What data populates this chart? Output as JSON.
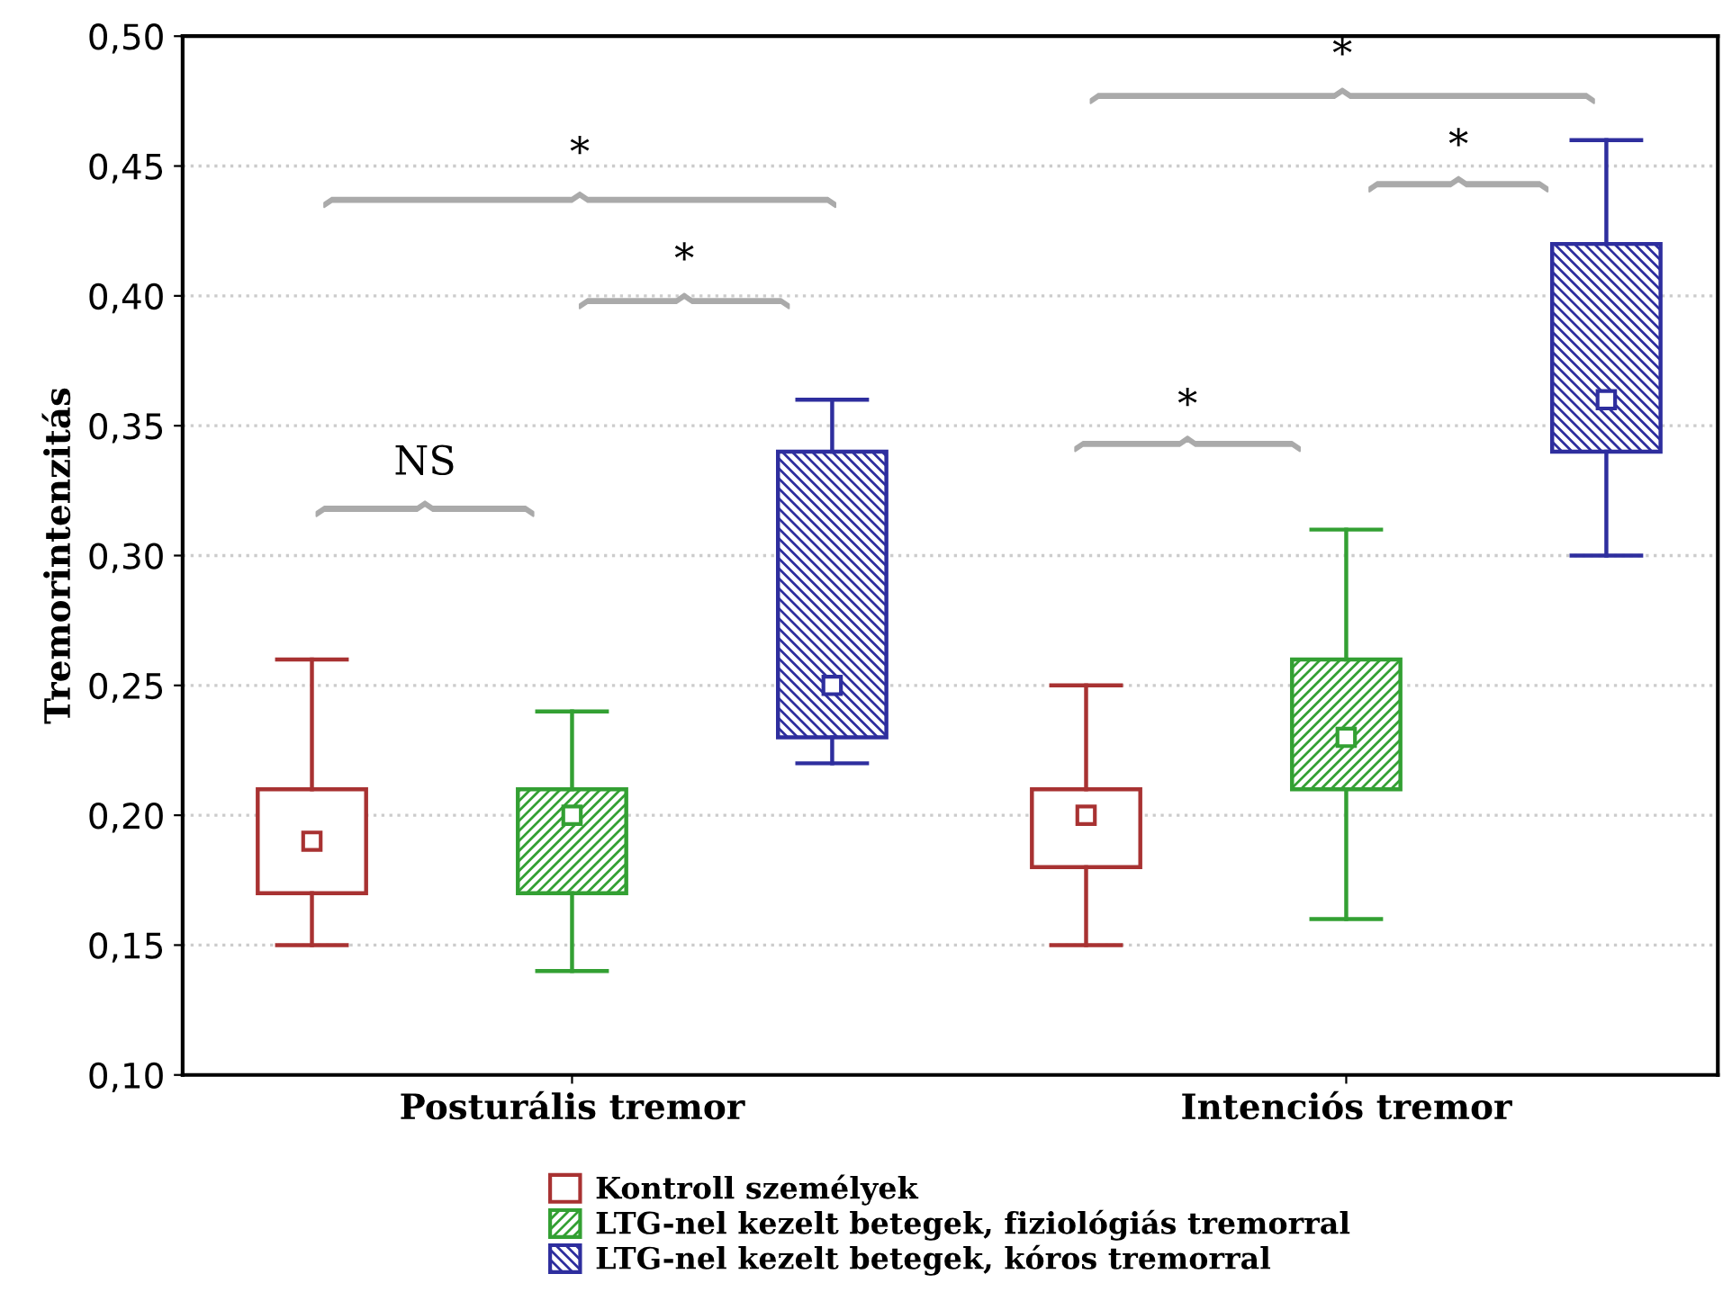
{
  "chart_data": {
    "type": "box",
    "ylabel": "Tremorintenzitás",
    "categories": [
      "Posturális tremor",
      "Intenciós tremor"
    ],
    "series": [
      {
        "name": "Kontroll személyek",
        "color": "#a83232",
        "boxes": [
          {
            "low": 0.15,
            "q1": 0.17,
            "median": 0.19,
            "q3": 0.21,
            "high": 0.26
          },
          {
            "low": 0.15,
            "q1": 0.18,
            "median": 0.2,
            "q3": 0.21,
            "high": 0.25
          }
        ]
      },
      {
        "name": "LTG-nel kezelt betegek, fiziológiás tremorral",
        "color": "#33a033",
        "boxes": [
          {
            "low": 0.14,
            "q1": 0.17,
            "median": 0.2,
            "q3": 0.21,
            "high": 0.24
          },
          {
            "low": 0.16,
            "q1": 0.21,
            "median": 0.23,
            "q3": 0.26,
            "high": 0.31
          }
        ]
      },
      {
        "name": "LTG-nel kezelt betegek, kóros tremorral",
        "color": "#2e2e9e",
        "boxes": [
          {
            "low": 0.22,
            "q1": 0.23,
            "median": 0.25,
            "q3": 0.34,
            "high": 0.36
          },
          {
            "low": 0.3,
            "q1": 0.34,
            "median": 0.36,
            "q3": 0.42,
            "high": 0.46
          }
        ]
      }
    ],
    "ylim": [
      0.1,
      0.5
    ],
    "yticks": [
      {
        "value": 0.1,
        "label": "0,10"
      },
      {
        "value": 0.15,
        "label": "0,15"
      },
      {
        "value": 0.2,
        "label": "0,20"
      },
      {
        "value": 0.25,
        "label": "0,25"
      },
      {
        "value": 0.3,
        "label": "0,30"
      },
      {
        "value": 0.35,
        "label": "0,35"
      },
      {
        "value": 0.4,
        "label": "0,40"
      },
      {
        "value": 0.45,
        "label": "0,45"
      },
      {
        "value": 0.5,
        "label": "0,50"
      }
    ],
    "grid": "y",
    "legend": "bottom",
    "annotations": [
      "NS",
      "*",
      "*",
      "*",
      "*",
      "*"
    ]
  }
}
